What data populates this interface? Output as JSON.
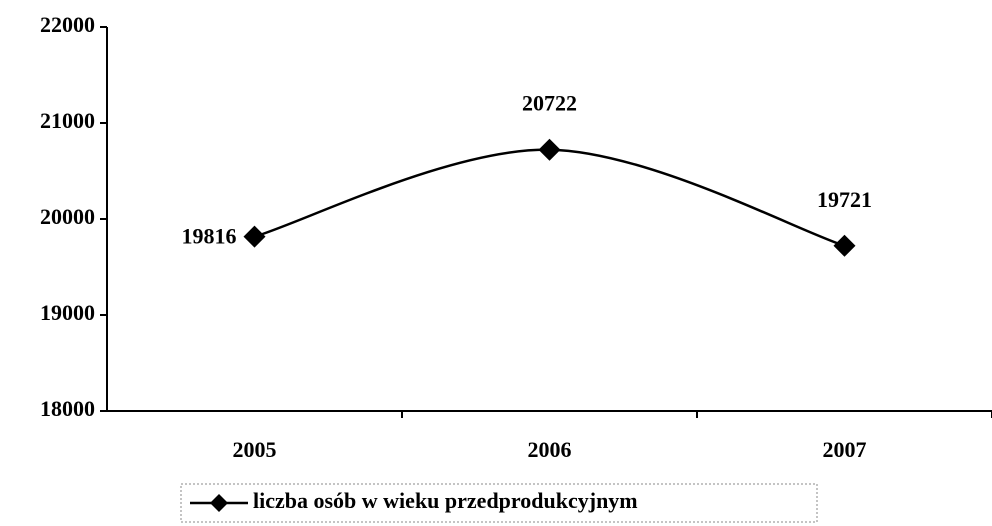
{
  "chart_data": {
    "type": "line",
    "categories": [
      "2005",
      "2006",
      "2007"
    ],
    "series": [
      {
        "name": "liczba osób w wieku przedprodukcyjnym",
        "color": "#000000",
        "values": [
          19816,
          20722,
          19721
        ]
      }
    ],
    "ylim": [
      18000,
      22000
    ],
    "yticks": [
      18000,
      19000,
      20000,
      21000,
      22000
    ],
    "smooth": true,
    "data_labels": true,
    "legend": "bottom"
  }
}
